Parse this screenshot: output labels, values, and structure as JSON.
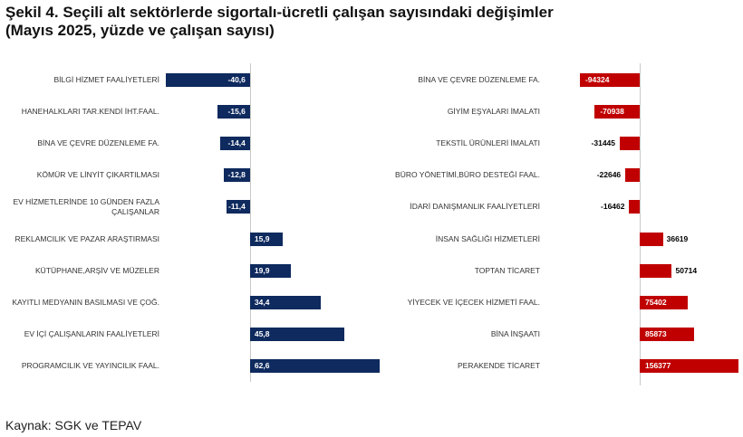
{
  "header": {
    "title": "Şekil 4. Seçili alt sektörlerde sigortalı-ücretli çalışan sayısındaki değişimler",
    "subtitle": "(Mayıs 2025, yüzde ve çalışan sayısı)"
  },
  "source": "Kaynak: SGK ve TEPAV",
  "chart_data": [
    {
      "type": "hbar",
      "color": "#0e2a5e",
      "categories": [
        "BİLGİ HİZMET FAALİYETLERİ",
        "HANEHALKLARI TAR.KENDİ İHT.FAAL.",
        "BİNA VE ÇEVRE DÜZENLEME FA.",
        "KÖMÜR VE LİNYİT ÇIKARTILMASI",
        "EV HİZMETLERİNDE 10 GÜNDEN FAZLA ÇALIŞANLAR",
        "REKLAMCILIK VE PAZAR ARAŞTIRMASI",
        "KÜTÜPHANE,ARŞİV VE MÜZELER",
        "KAYITLI MEDYANIN BASILMASI VE ÇOĞ.",
        "EV İÇİ ÇALIŞANLARIN FAALİYETLERİ",
        "PROGRAMCILIK VE YAYINCILIK FAAL."
      ],
      "values": [
        -40.6,
        -15.6,
        -14.4,
        -12.8,
        -11.4,
        15.9,
        19.9,
        34.4,
        45.8,
        62.6
      ],
      "value_labels": [
        "-40,6",
        "-15,6",
        "-14,4",
        "-12,8",
        "-11,4",
        "15,9",
        "19,9",
        "34,4",
        "45,8",
        "62,6"
      ],
      "xlim": [
        -42,
        64
      ]
    },
    {
      "type": "hbar",
      "color": "#c00000",
      "categories": [
        "BİNA VE ÇEVRE DÜZENLEME FA.",
        "GİYİM EŞYALARI İMALATI",
        "TEKSTİL ÜRÜNLERİ İMALATI",
        "BÜRO YÖNETİMİ,BÜRO DESTEĞİ FAAL.",
        "İDARİ DANIŞMANLIK FAALİYETLERİ",
        "İNSAN SAĞLIĞI HİZMETLERİ",
        "TOPTAN TİCARET",
        "YİYECEK VE İÇECEK HİZMETİ FAAL.",
        "BİNA İNŞAATI",
        "PERAKENDE TİCARET"
      ],
      "values": [
        -94324,
        -70938,
        -31445,
        -22646,
        -16462,
        36619,
        50714,
        75402,
        85873,
        156377
      ],
      "xlim": [
        -100000,
        160000
      ]
    }
  ]
}
